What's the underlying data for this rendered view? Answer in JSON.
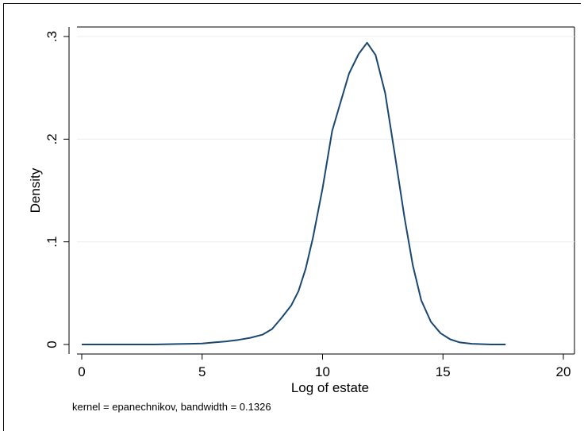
{
  "chart_data": {
    "type": "line",
    "title": "",
    "xlabel": "Log of estate",
    "ylabel": "Density",
    "note": "kernel = epanechnikov, bandwidth = 0.1326",
    "xlim": [
      0,
      20
    ],
    "ylim": [
      0,
      0.3
    ],
    "x_ticks": [
      0,
      5,
      10,
      15,
      20
    ],
    "x_tick_labels": [
      "0",
      "5",
      "10",
      "15",
      "20"
    ],
    "y_ticks": [
      0,
      0.1,
      0.2,
      0.3
    ],
    "y_tick_labels": [
      "0",
      ".1",
      ".2",
      ".3"
    ],
    "grid": "horizontal",
    "series": [
      {
        "color": "#1a476f",
        "x": [
          0.0,
          1.0,
          2.0,
          3.0,
          4.0,
          4.5,
          5.0,
          5.5,
          6.0,
          6.5,
          7.0,
          7.5,
          7.9,
          8.3,
          8.7,
          9.0,
          9.3,
          9.6,
          10.0,
          10.4,
          10.7,
          11.1,
          11.5,
          11.85,
          12.2,
          12.6,
          13.0,
          13.4,
          13.75,
          14.1,
          14.5,
          14.9,
          15.3,
          15.7,
          16.2,
          17.0,
          17.6
        ],
        "y": [
          0.0,
          0.0,
          0.0,
          0.0,
          0.0005,
          0.0007,
          0.001,
          0.002,
          0.003,
          0.0045,
          0.0065,
          0.0095,
          0.015,
          0.026,
          0.038,
          0.052,
          0.074,
          0.104,
          0.152,
          0.208,
          0.232,
          0.264,
          0.283,
          0.294,
          0.282,
          0.245,
          0.185,
          0.124,
          0.077,
          0.043,
          0.022,
          0.011,
          0.005,
          0.002,
          0.0007,
          0.0,
          0.0
        ]
      }
    ]
  }
}
